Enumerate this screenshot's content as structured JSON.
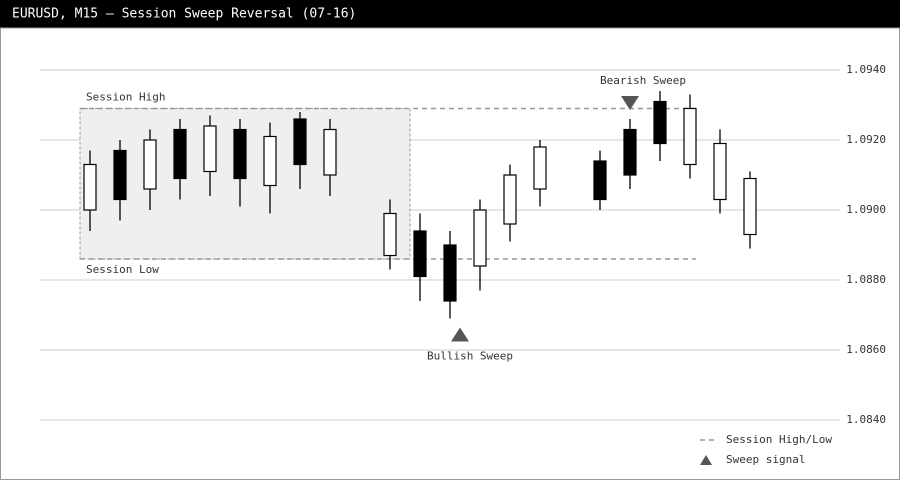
{
  "chart_data": {
    "type": "candlestick",
    "title": "EURUSD, M15 — Session Sweep Reversal (07-16)",
    "categories": [
      null,
      null,
      null,
      null,
      null,
      null,
      null,
      null,
      null,
      null,
      null,
      null,
      null,
      null,
      null,
      null,
      null,
      null,
      null,
      null,
      null,
      null,
      null
    ],
    "open": [
      1.09,
      1.0917,
      1.0906,
      1.0923,
      1.0911,
      1.0923,
      1.0907,
      1.0926,
      1.091,
      null,
      1.0887,
      1.0894,
      1.089,
      1.0884,
      1.0896,
      1.0906,
      null,
      1.0914,
      1.0923,
      1.0931,
      1.0913,
      1.0903,
      1.0893
    ],
    "high": [
      1.0917,
      1.092,
      1.0923,
      1.0926,
      1.0927,
      1.0926,
      1.0925,
      1.0928,
      1.0926,
      null,
      1.0903,
      1.0899,
      1.0894,
      1.0903,
      1.0913,
      1.092,
      null,
      1.0917,
      1.0926,
      1.0934,
      1.0933,
      1.0923,
      1.0911
    ],
    "low": [
      1.0894,
      1.0897,
      1.09,
      1.0903,
      1.0904,
      1.0901,
      1.0899,
      1.0906,
      1.0904,
      null,
      1.0883,
      1.0874,
      1.0869,
      1.0877,
      1.0891,
      1.0901,
      null,
      1.09,
      1.0906,
      1.0914,
      1.0909,
      1.0899,
      1.0889
    ],
    "close": [
      1.0913,
      1.0903,
      1.092,
      1.0909,
      1.0924,
      1.0909,
      1.0921,
      1.0913,
      1.0923,
      null,
      1.0899,
      1.0881,
      1.0874,
      1.09,
      1.091,
      1.0918,
      null,
      1.0903,
      1.091,
      1.0919,
      1.0929,
      1.0919,
      1.0909
    ],
    "up_color": "#ffffff",
    "down_color": "#000000",
    "ylim": [
      1.0826,
      1.0952
    ],
    "yticks": [
      {
        "value": 1.084,
        "label": "1.0840"
      },
      {
        "value": 1.086,
        "label": "1.0860"
      },
      {
        "value": 1.088,
        "label": "1.0880"
      },
      {
        "value": 1.09,
        "label": "1.0900"
      },
      {
        "value": 1.092,
        "label": "1.0920"
      },
      {
        "value": 1.094,
        "label": "1.0940"
      }
    ],
    "grid": true,
    "levels": [
      {
        "name": "Session High",
        "value": 1.0929
      },
      {
        "name": "Session Low",
        "value": 1.0886
      }
    ],
    "signals": [
      {
        "label": "Bullish Sweep",
        "direction": "up"
      },
      {
        "label": "Bearish Sweep",
        "direction": "down"
      }
    ],
    "legend": [
      "Session High/Low",
      "Sweep signal"
    ]
  }
}
